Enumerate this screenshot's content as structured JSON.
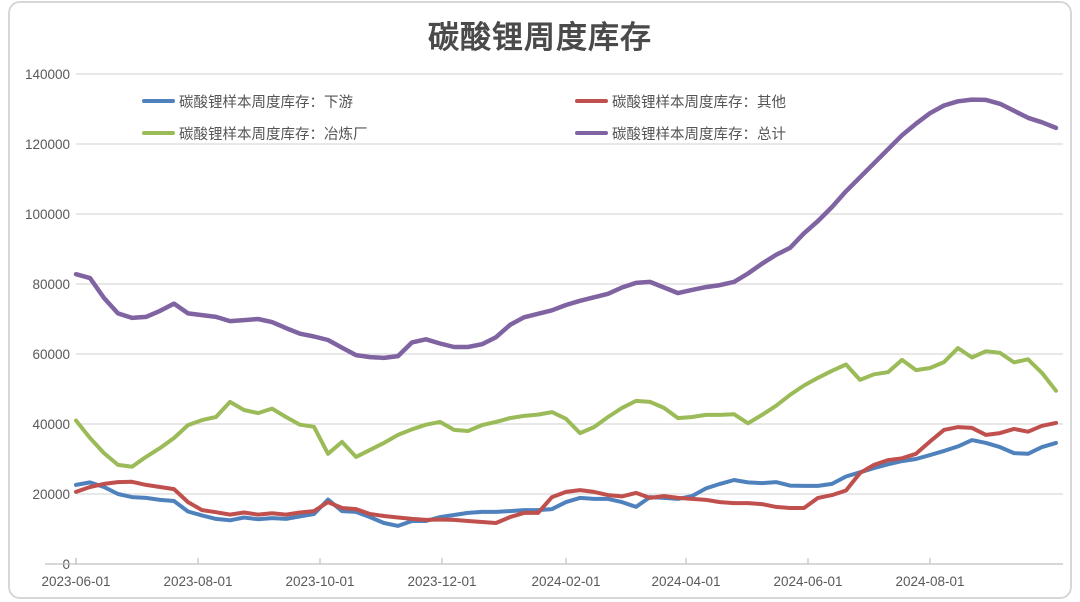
{
  "title": {
    "text": "碳酸锂周度库存"
  },
  "legend": {
    "items": [
      {
        "label": "碳酸锂样本周度库存：下游",
        "series": "下游"
      },
      {
        "label": "碳酸锂样本周度库存：其他",
        "series": "其他"
      },
      {
        "label": "碳酸锂样本周度库存：冶炼厂",
        "series": "冶炼厂"
      },
      {
        "label": "碳酸锂样本周度库存：总计",
        "series": "总计"
      }
    ]
  },
  "colors": {
    "downstream": "#4F81BD",
    "other": "#C0504D",
    "smelter": "#9BBB59",
    "total": "#8064A2",
    "gridline": "#d9d9d9",
    "axis": "#c0c0c0",
    "tick_text": "#595959",
    "title_text": "#4a4a4a",
    "frame_border": "#d7d7d7"
  },
  "chart_data": {
    "type": "line",
    "title": "碳酸锂周度库存",
    "x_unit": "weekly from 2023-06-01",
    "grid": "horizontal gridlines on",
    "legend_position": "top",
    "x_axis": {
      "tick_labels": [
        "2023-06-01",
        "2023-08-01",
        "2023-10-01",
        "2023-12-01",
        "2024-02-01",
        "2024-04-01",
        "2024-06-01",
        "2024-08-01"
      ],
      "tick_day_offsets": [
        0,
        61,
        122,
        183,
        245,
        305,
        366,
        427
      ]
    },
    "y_axis": {
      "min": 0,
      "max": 140000,
      "tick_step": 20000,
      "ticks": [
        0,
        20000,
        40000,
        60000,
        80000,
        100000,
        120000,
        140000
      ]
    },
    "series": [
      {
        "name": "碳酸锂样本周度库存：下游",
        "short_name": "下游",
        "color": "#4F81BD",
        "width": 4,
        "values": [
          22600,
          23300,
          22000,
          20000,
          19100,
          18900,
          18300,
          18000,
          15000,
          13900,
          12900,
          12500,
          13300,
          12800,
          13100,
          12900,
          13600,
          14300,
          18400,
          15100,
          14900,
          13400,
          11700,
          10900,
          12300,
          12300,
          13400,
          14000,
          14600,
          14900,
          14900,
          15100,
          15400,
          15400,
          15700,
          17700,
          18900,
          18600,
          18600,
          17700,
          16300,
          19100,
          18900,
          18600,
          19400,
          21600,
          22900,
          24000,
          23300,
          23100,
          23400,
          22400,
          22300,
          22300,
          22900,
          25000,
          26200,
          27400,
          28500,
          29400,
          30000,
          31100,
          32300,
          33600,
          35400,
          34600,
          33400,
          31700,
          31500,
          33400,
          34600
        ]
      },
      {
        "name": "碳酸锂样本周度库存：其他",
        "short_name": "其他",
        "color": "#C0504D",
        "width": 4,
        "values": [
          20600,
          22000,
          22900,
          23400,
          23500,
          22600,
          22000,
          21400,
          17700,
          15400,
          14800,
          14100,
          14700,
          14100,
          14500,
          14100,
          14700,
          15100,
          17700,
          16000,
          15700,
          14300,
          13700,
          13300,
          12900,
          12600,
          12700,
          12600,
          12300,
          12000,
          11700,
          13400,
          14600,
          14600,
          19100,
          20600,
          21100,
          20600,
          19700,
          19300,
          20300,
          18900,
          19400,
          18900,
          18600,
          18300,
          17700,
          17400,
          17400,
          17100,
          16300,
          16000,
          16000,
          18900,
          19700,
          21000,
          26000,
          28300,
          29700,
          30200,
          31500,
          35000,
          38300,
          39100,
          38900,
          36900,
          37400,
          38600,
          37800,
          39500,
          40300
        ]
      },
      {
        "name": "碳酸锂样本周度库存：冶炼厂",
        "short_name": "冶炼厂",
        "color": "#9BBB59",
        "width": 4,
        "values": [
          41000,
          36000,
          31700,
          28300,
          27800,
          30600,
          33100,
          36000,
          39700,
          41100,
          42000,
          46300,
          44000,
          43100,
          44400,
          42000,
          39800,
          39200,
          31500,
          34900,
          30600,
          32600,
          34600,
          36900,
          38500,
          39800,
          40600,
          38300,
          38000,
          39700,
          40600,
          41700,
          42300,
          42700,
          43400,
          41500,
          37400,
          39100,
          42000,
          44600,
          46600,
          46300,
          44600,
          41700,
          42000,
          42600,
          42600,
          42800,
          40200,
          42600,
          45200,
          48300,
          51000,
          53200,
          55200,
          57000,
          52600,
          54200,
          54800,
          58300,
          55400,
          56000,
          57700,
          61700,
          59000,
          60800,
          60300,
          57600,
          58500,
          54600,
          49500
        ]
      },
      {
        "name": "碳酸锂样本周度库存：总计",
        "short_name": "总计",
        "color": "#8064A2",
        "width": 4.5,
        "values": [
          82800,
          81700,
          76000,
          71600,
          70300,
          70600,
          72300,
          74400,
          71600,
          71100,
          70600,
          69400,
          69700,
          70000,
          69100,
          67400,
          65800,
          65000,
          64000,
          61800,
          59700,
          59100,
          58900,
          59400,
          63300,
          64200,
          63000,
          62000,
          62000,
          62800,
          64800,
          68300,
          70500,
          71500,
          72500,
          74000,
          75200,
          76200,
          77200,
          79000,
          80300,
          80600,
          79000,
          77400,
          78300,
          79100,
          79700,
          80600,
          83000,
          85800,
          88300,
          90300,
          94500,
          98000,
          102000,
          106500,
          110500,
          114500,
          118500,
          122500,
          125800,
          128800,
          131000,
          132200,
          132700,
          132600,
          131500,
          129500,
          127500,
          126200,
          124600
        ]
      }
    ]
  }
}
